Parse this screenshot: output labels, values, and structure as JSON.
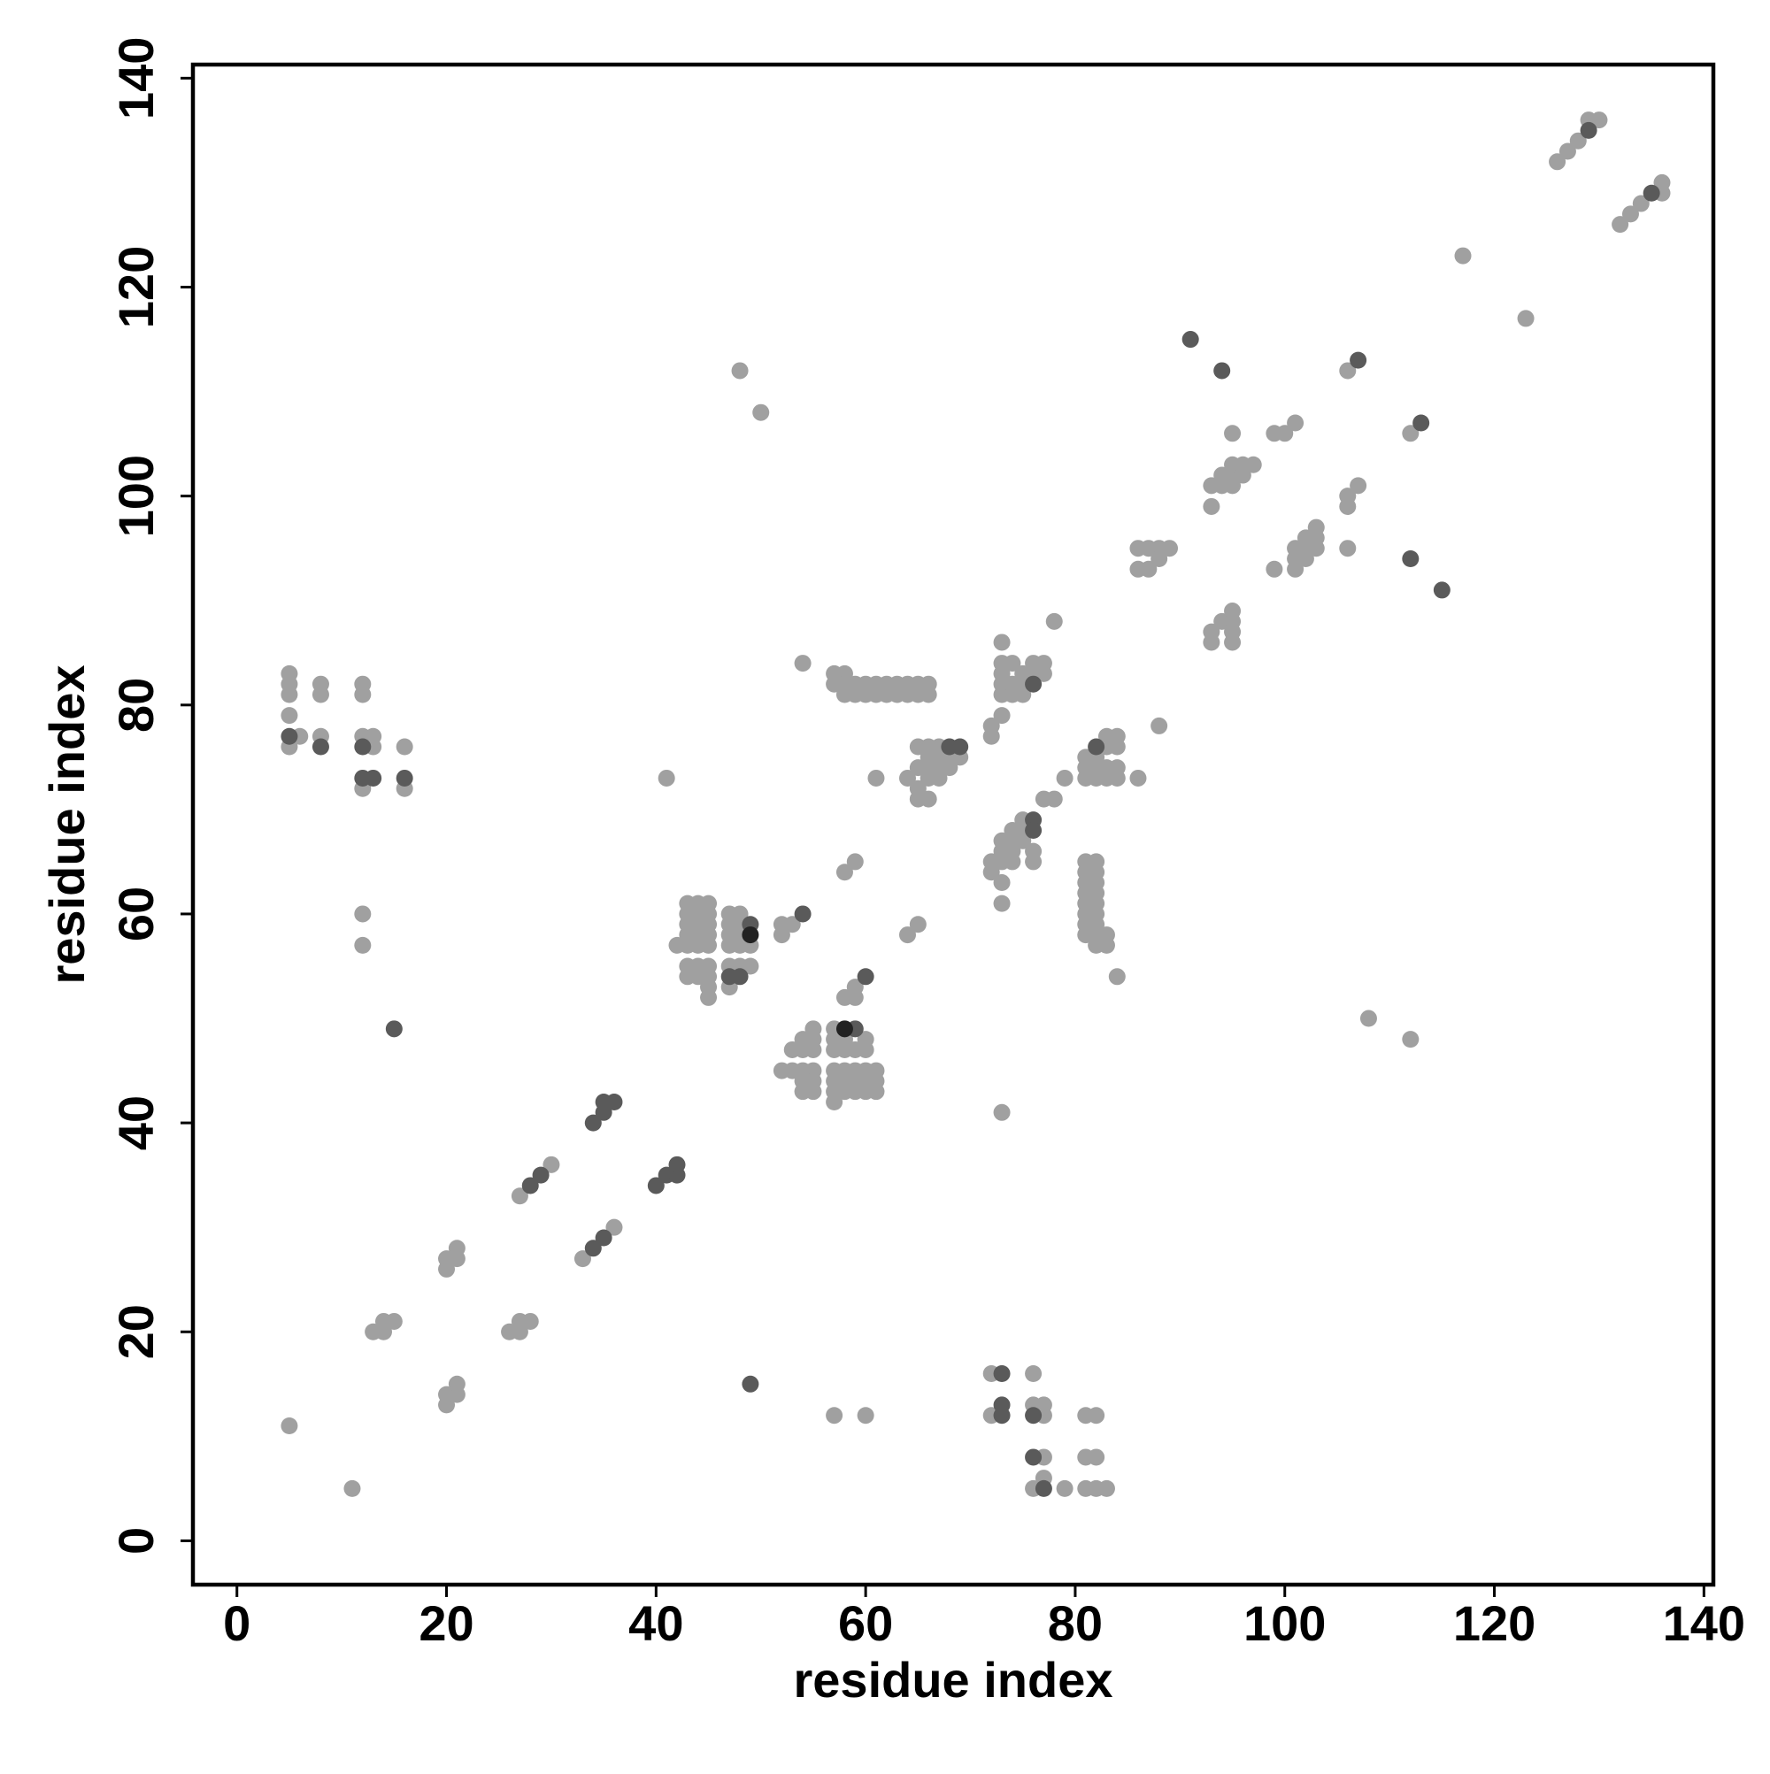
{
  "chart_data": {
    "type": "scatter",
    "x_label": "residue index",
    "y_label": "residue index",
    "xlim": [
      -4.2,
      140.9
    ],
    "ylim": [
      -4.2,
      141.3
    ],
    "xticks": [
      0,
      20,
      40,
      60,
      80,
      100,
      120,
      140
    ],
    "yticks": [
      0,
      20,
      40,
      60,
      80,
      100,
      120,
      140
    ],
    "series": [
      {
        "color": "#a0a0a0",
        "x": [
          126,
          127,
          128,
          129,
          130,
          132,
          133,
          134,
          136,
          136,
          117,
          123,
          48,
          50,
          106,
          107,
          106,
          106,
          106,
          112,
          93,
          94,
          94,
          95,
          95,
          95,
          96,
          96,
          97,
          95,
          93,
          99,
          100,
          101,
          99,
          101,
          101,
          101,
          102,
          102,
          102,
          103,
          103,
          103,
          86,
          87,
          86,
          87,
          88,
          88,
          89,
          93,
          93,
          94,
          95,
          95,
          95,
          95,
          78,
          88,
          73,
          73,
          74,
          73,
          73,
          73,
          74,
          75,
          75,
          77,
          77,
          76,
          76,
          73,
          74,
          75,
          81,
          81,
          81,
          82,
          82,
          82,
          83,
          84,
          83,
          84,
          83,
          84,
          84,
          83,
          86,
          79,
          77,
          78,
          72,
          72,
          73,
          73,
          73,
          74,
          74,
          74,
          75,
          75,
          75,
          76,
          76,
          73,
          73,
          74,
          81,
          81,
          81,
          81,
          81,
          81,
          81,
          81,
          82,
          82,
          82,
          82,
          82,
          82,
          82,
          82,
          82,
          83,
          83,
          84,
          72,
          72,
          61,
          64,
          65,
          65,
          66,
          66,
          66,
          67,
          67,
          67,
          68,
          68,
          65,
          66,
          67,
          69,
          65,
          66,
          57,
          57,
          58,
          58,
          58,
          59,
          59,
          60,
          61,
          62,
          63,
          64,
          65,
          66,
          60,
          61,
          62,
          63,
          64,
          65,
          66,
          54,
          41,
          58,
          59,
          64,
          65,
          43,
          44,
          45,
          43,
          44,
          45,
          43,
          44,
          45,
          43,
          44,
          45,
          43,
          44,
          45,
          42,
          43,
          44,
          45,
          43,
          44,
          45,
          45,
          45,
          47,
          48,
          47,
          48,
          47,
          48,
          47,
          48,
          49,
          47,
          48,
          49,
          47,
          52,
          52,
          53,
          58,
          59,
          59,
          52,
          53,
          54,
          55,
          53,
          54,
          54,
          55,
          55,
          54,
          55,
          54,
          55,
          55,
          57,
          57,
          57,
          57,
          57,
          57,
          57,
          58,
          58,
          58,
          58,
          58,
          59,
          59,
          59,
          59,
          60,
          60,
          60,
          60,
          60,
          61,
          61,
          61,
          73,
          108,
          112,
          27,
          30,
          33,
          36,
          20,
          20,
          21,
          21,
          26,
          27,
          27,
          28,
          13,
          14,
          14,
          15,
          20,
          20,
          21,
          21,
          5,
          11,
          57,
          60,
          72,
          76,
          72,
          76,
          77,
          77,
          77,
          76,
          77,
          79,
          81,
          82,
          81,
          82,
          81,
          82,
          83,
          5,
          5,
          5,
          5,
          6,
          5,
          8,
          8,
          8,
          12,
          12,
          12,
          13,
          13,
          12,
          16,
          16,
          12,
          12
        ],
        "values": [
          132,
          133,
          134,
          136,
          136,
          126,
          127,
          128,
          129,
          130,
          123,
          117,
          112,
          108,
          112,
          101,
          100,
          99,
          95,
          106,
          101,
          101,
          102,
          101,
          102,
          103,
          102,
          103,
          103,
          106,
          99,
          106,
          106,
          107,
          93,
          93,
          94,
          95,
          94,
          95,
          96,
          95,
          96,
          97,
          93,
          93,
          95,
          95,
          95,
          94,
          95,
          86,
          87,
          88,
          88,
          87,
          86,
          89,
          88,
          78,
          86,
          84,
          84,
          83,
          82,
          81,
          81,
          81,
          82,
          83,
          84,
          84,
          83,
          79,
          82,
          83,
          73,
          74,
          75,
          73,
          74,
          75,
          77,
          77,
          76,
          76,
          74,
          74,
          73,
          73,
          73,
          73,
          71,
          71,
          65,
          64,
          65,
          66,
          67,
          66,
          67,
          68,
          67,
          68,
          69,
          66,
          65,
          63,
          61,
          65,
          65,
          64,
          63,
          62,
          61,
          60,
          59,
          58,
          65,
          64,
          63,
          62,
          61,
          60,
          59,
          58,
          57,
          58,
          57,
          54,
          77,
          78,
          73,
          73,
          71,
          72,
          71,
          73,
          74,
          73,
          74,
          75,
          74,
          75,
          76,
          76,
          76,
          75,
          74,
          75,
          83,
          82,
          83,
          82,
          81,
          82,
          81,
          81,
          81,
          81,
          81,
          81,
          81,
          81,
          82,
          82,
          82,
          82,
          82,
          82,
          82,
          84,
          73,
          64,
          65,
          58,
          59,
          61,
          61,
          61,
          60,
          60,
          60,
          59,
          59,
          59,
          58,
          58,
          58,
          57,
          57,
          57,
          57,
          55,
          55,
          55,
          54,
          54,
          54,
          53,
          52,
          60,
          60,
          59,
          59,
          58,
          58,
          57,
          57,
          57,
          55,
          55,
          55,
          53,
          58,
          59,
          59,
          52,
          52,
          53,
          45,
          45,
          45,
          45,
          47,
          47,
          48,
          48,
          49,
          44,
          44,
          43,
          43,
          47,
          49,
          48,
          47,
          45,
          44,
          43,
          42,
          48,
          47,
          45,
          44,
          43,
          47,
          45,
          44,
          43,
          48,
          47,
          45,
          44,
          43,
          45,
          44,
          43,
          41,
          50,
          48,
          33,
          36,
          27,
          30,
          26,
          27,
          27,
          28,
          20,
          20,
          21,
          21,
          20,
          20,
          21,
          21,
          13,
          14,
          14,
          15,
          11,
          5,
          12,
          12,
          16,
          16,
          12,
          13,
          13,
          12,
          8,
          5,
          6,
          5,
          12,
          12,
          8,
          8,
          5,
          5,
          5,
          83,
          82,
          81,
          79,
          77,
          76,
          82,
          81,
          77,
          82,
          81,
          77,
          77,
          76,
          72,
          76,
          72,
          60,
          57
        ]
      },
      {
        "color": "#5a5a5a",
        "x": [
          129,
          135,
          91,
          94,
          107,
          113,
          112,
          115,
          76,
          82,
          76,
          76,
          68,
          69,
          47,
          48,
          49,
          54,
          60,
          59,
          15,
          34,
          35,
          35,
          36,
          40,
          41,
          42,
          42,
          28,
          29,
          34,
          35,
          49,
          73,
          73,
          73,
          76,
          76,
          77,
          5,
          8,
          12,
          12,
          13,
          16
        ],
        "values": [
          135,
          129,
          115,
          112,
          113,
          107,
          94,
          91,
          82,
          76,
          69,
          68,
          76,
          76,
          54,
          54,
          59,
          60,
          54,
          49,
          49,
          40,
          41,
          42,
          42,
          34,
          35,
          35,
          36,
          34,
          35,
          28,
          29,
          15,
          16,
          12,
          13,
          12,
          8,
          5,
          77,
          76,
          76,
          73,
          73,
          73
        ]
      },
      {
        "color": "#222222",
        "x": [
          49,
          58
        ],
        "values": [
          58,
          49
        ]
      }
    ]
  }
}
